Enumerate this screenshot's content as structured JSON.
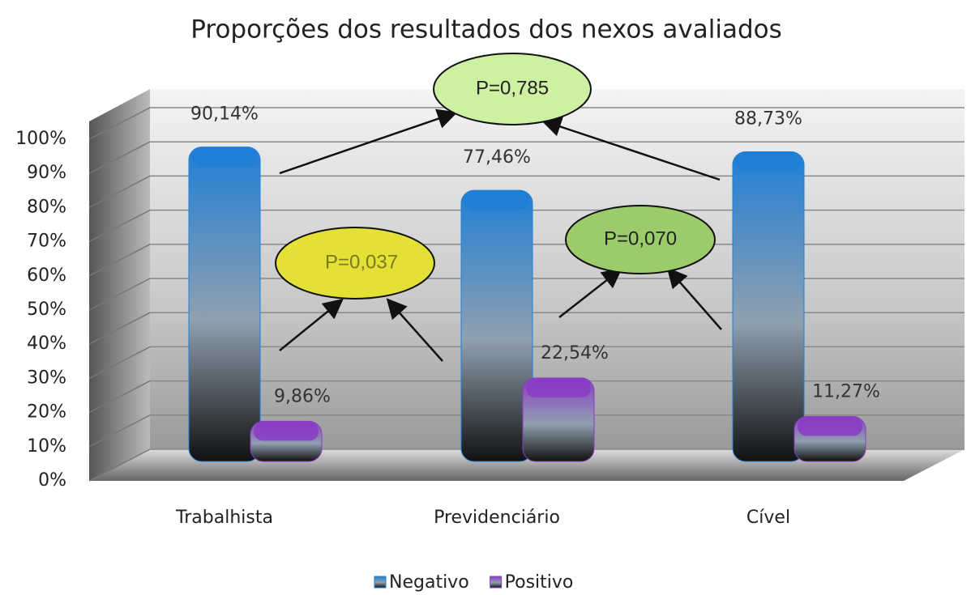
{
  "chart_data": {
    "type": "bar",
    "title": "Proporções dos resultados dos nexos avaliados",
    "categories": [
      "Trabalhista",
      "Previdenciário",
      "Cível"
    ],
    "series": [
      {
        "name": "Negativo",
        "color": "#1f7fd6",
        "values": [
          90.14,
          77.46,
          88.73
        ],
        "value_labels": [
          "90,14%",
          "77,46%",
          "88,73%"
        ]
      },
      {
        "name": "Positivo",
        "color": "#8a3cc4",
        "values": [
          9.86,
          22.54,
          11.27
        ],
        "value_labels": [
          "9,86%",
          "22,54%",
          "11,27%"
        ]
      }
    ],
    "ylim": [
      0,
      100
    ],
    "yticks": [
      {
        "value": 0,
        "label": "0%"
      },
      {
        "value": 10,
        "label": "10%"
      },
      {
        "value": 20,
        "label": "20%"
      },
      {
        "value": 30,
        "label": "30%"
      },
      {
        "value": 40,
        "label": "40%"
      },
      {
        "value": 50,
        "label": "50%"
      },
      {
        "value": 60,
        "label": "60%"
      },
      {
        "value": 70,
        "label": "70%"
      },
      {
        "value": 80,
        "label": "80%"
      },
      {
        "value": 90,
        "label": "90%"
      },
      {
        "value": 100,
        "label": "100%"
      }
    ],
    "grid": true,
    "legend": "bottom",
    "annotations": [
      "P=0,785",
      "P=0,037",
      "P=0,070"
    ]
  }
}
